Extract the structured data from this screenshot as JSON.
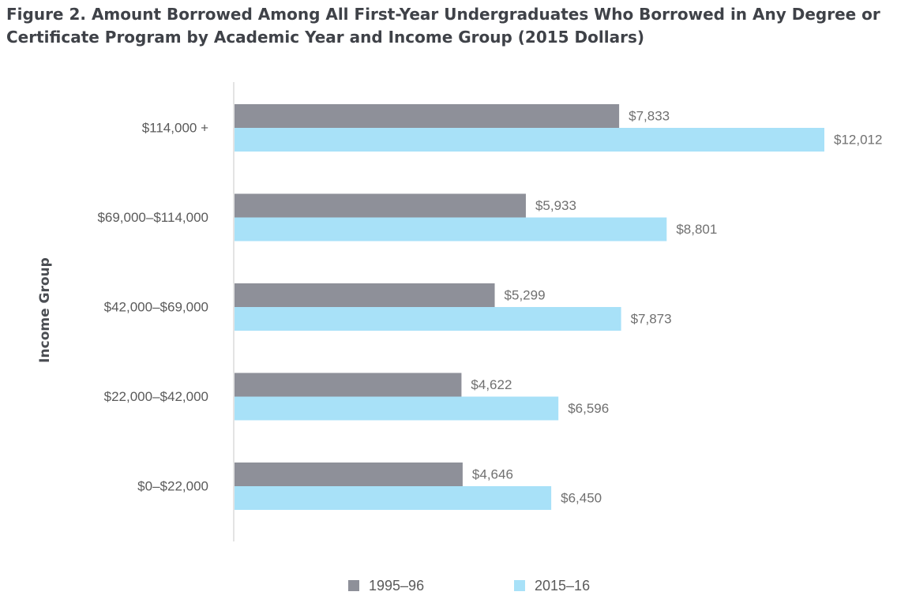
{
  "chart_data": {
    "type": "bar",
    "orientation": "horizontal",
    "title": "Figure 2. Amount Borrowed Among All First-Year Undergraduates Who Borrowed in Any Degree or Certificate Program by Academic Year and Income Group (2015 Dollars)",
    "ylabel": "Income Group",
    "xlabel": "",
    "categories": [
      "$114,000 +",
      "$69,000–$114,000",
      "$42,000–$69,000",
      "$22,000–$42,000",
      "$0–$22,000"
    ],
    "series": [
      {
        "name": "1995–96",
        "color": "#8e9099",
        "values": [
          7833,
          5933,
          5299,
          4622,
          4646
        ],
        "labels": [
          "$7,833",
          "$5,933",
          "$5,299",
          "$4,622",
          "$4,646"
        ]
      },
      {
        "name": "2015–16",
        "color": "#a8e1f8",
        "values": [
          12012,
          8801,
          7873,
          6596,
          6450
        ],
        "labels": [
          "$12,012",
          "$8,801",
          "$7,873",
          "$6,596",
          "$6,450"
        ]
      }
    ],
    "xlim": [
      0,
      12012
    ],
    "grid": false,
    "legend_position": "bottom"
  }
}
